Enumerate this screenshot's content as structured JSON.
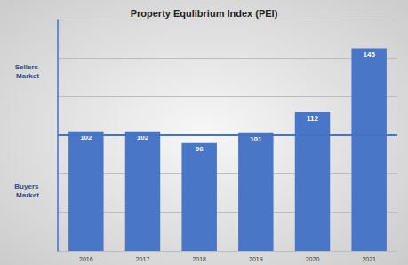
{
  "chart_data": {
    "type": "bar",
    "title": "Property Equlibrium Index (PEI)",
    "categories": [
      "2016",
      "2017",
      "2018",
      "2019",
      "2020",
      "2021"
    ],
    "values": [
      102,
      102,
      96,
      101,
      112,
      145
    ],
    "color": "#4a76c8",
    "ylim": [
      40,
      160
    ],
    "yticks": [
      40,
      60,
      80,
      100,
      120,
      140,
      160
    ],
    "grid": true,
    "data_labels": true,
    "tick_labels": "x",
    "reference_line": 100,
    "annotations": [
      {
        "text": "Sellers Market",
        "y": 133
      },
      {
        "text": "Buyers Market",
        "y": 71
      }
    ]
  }
}
